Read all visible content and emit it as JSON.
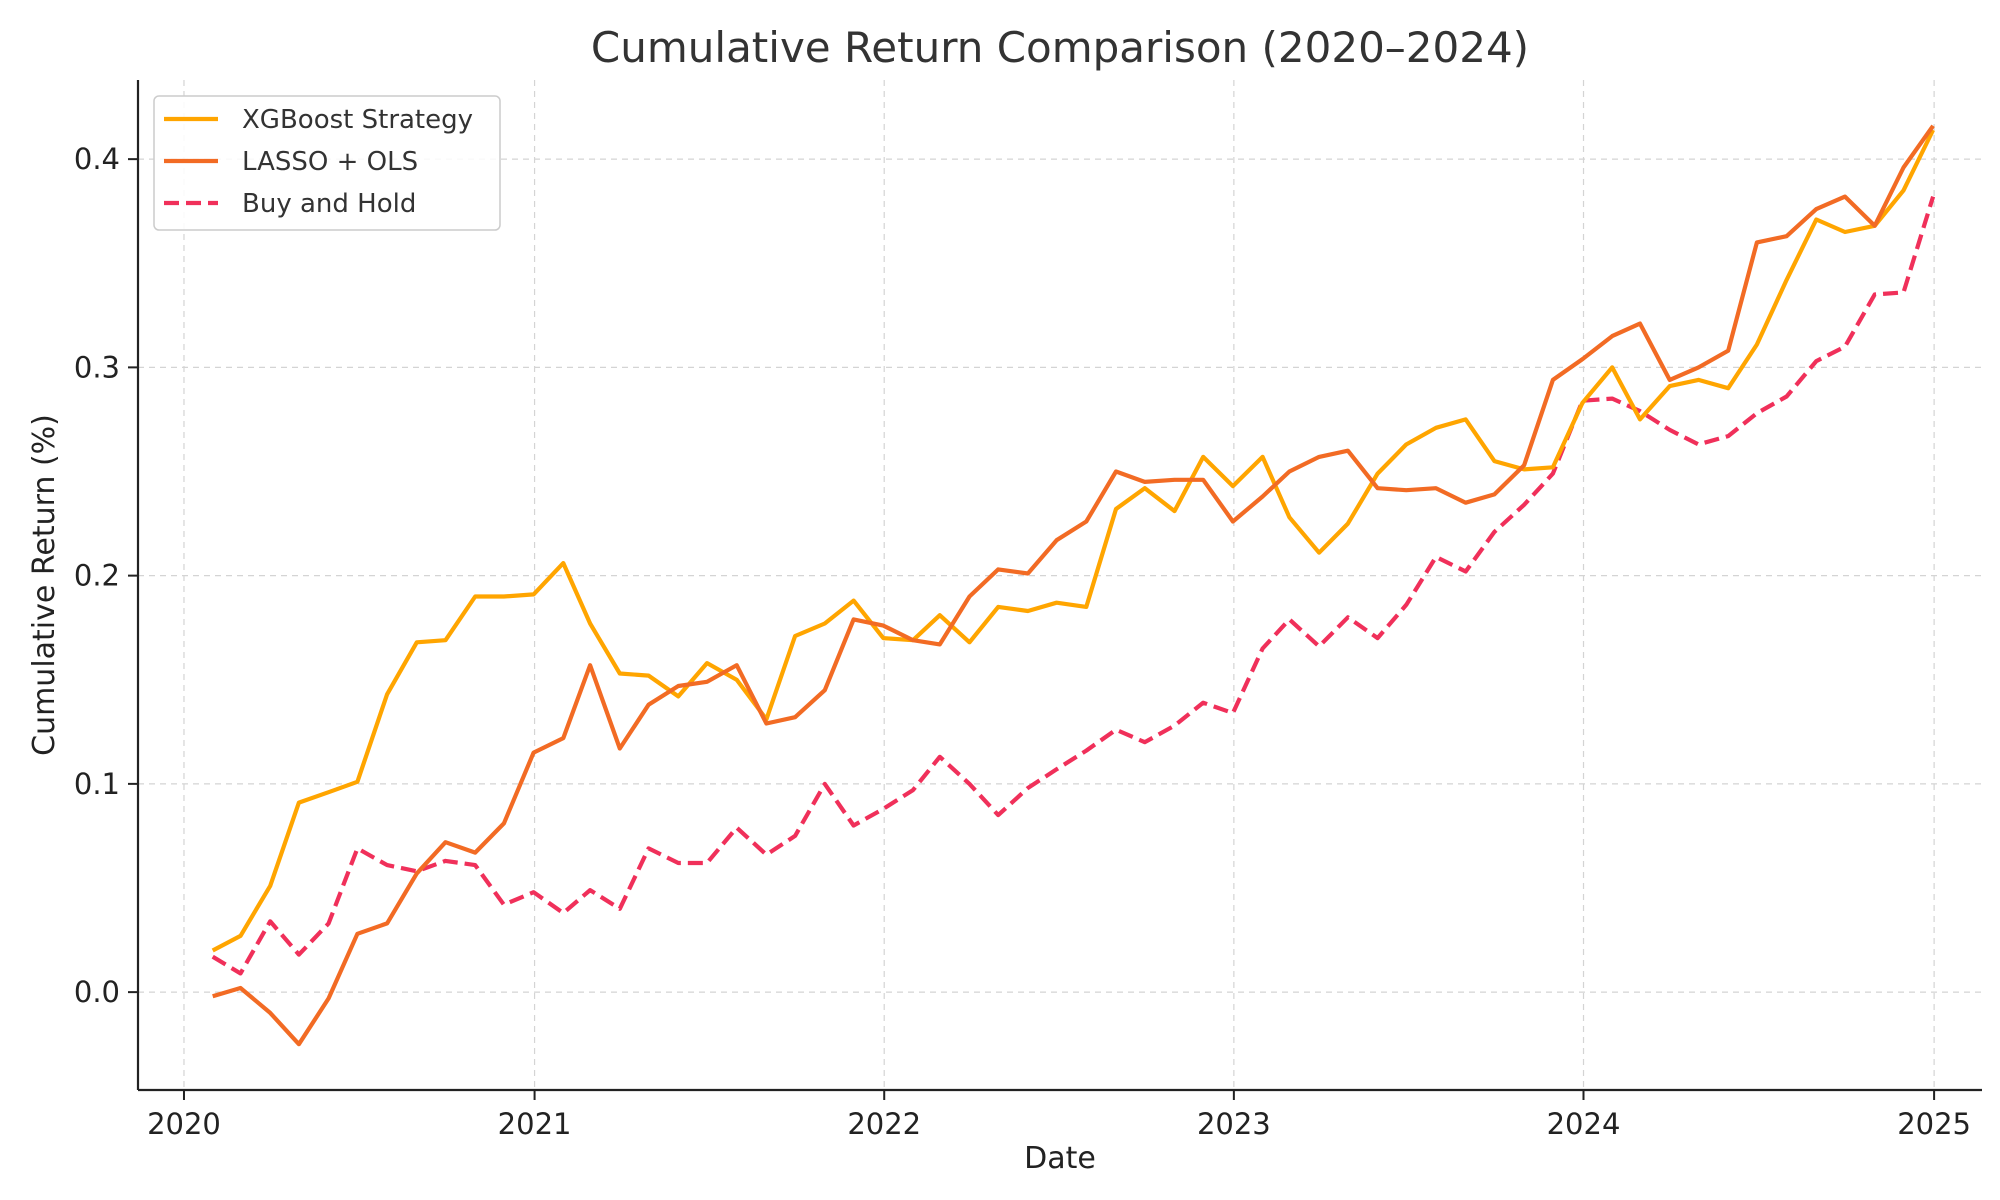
{
  "chart_data": {
    "type": "line",
    "title": "Cumulative Return Comparison (2020–2024)",
    "xlabel": "Date",
    "ylabel": "Cumulative Return (%)",
    "x_ticks": [
      "2020",
      "2021",
      "2022",
      "2023",
      "2024",
      "2025"
    ],
    "y_ticks": [
      "0.0",
      "0.1",
      "0.2",
      "0.3",
      "0.4"
    ],
    "xlim": [
      "2019-11-14",
      "2025-02-20"
    ],
    "ylim": [
      -0.047,
      0.438
    ],
    "grid": true,
    "legend_position": "upper-left",
    "x": [
      "2020-01-31",
      "2020-02-29",
      "2020-03-31",
      "2020-04-30",
      "2020-05-31",
      "2020-06-30",
      "2020-07-31",
      "2020-08-31",
      "2020-09-30",
      "2020-10-31",
      "2020-11-30",
      "2020-12-31",
      "2021-01-31",
      "2021-02-28",
      "2021-03-31",
      "2021-04-30",
      "2021-05-31",
      "2021-06-30",
      "2021-07-31",
      "2021-08-31",
      "2021-09-30",
      "2021-10-31",
      "2021-11-30",
      "2021-12-31",
      "2022-01-31",
      "2022-02-28",
      "2022-03-31",
      "2022-04-30",
      "2022-05-31",
      "2022-06-30",
      "2022-07-31",
      "2022-08-31",
      "2022-09-30",
      "2022-10-31",
      "2022-11-30",
      "2022-12-31",
      "2023-01-31",
      "2023-02-28",
      "2023-03-31",
      "2023-04-30",
      "2023-05-31",
      "2023-06-30",
      "2023-07-31",
      "2023-08-31",
      "2023-09-30",
      "2023-10-31",
      "2023-11-30",
      "2023-12-31",
      "2024-01-31",
      "2024-02-29",
      "2024-03-31",
      "2024-04-30",
      "2024-05-31",
      "2024-06-30",
      "2024-07-31",
      "2024-08-31",
      "2024-09-30",
      "2024-10-31",
      "2024-11-30",
      "2024-12-31"
    ],
    "series": [
      {
        "name": "XGBoost Strategy",
        "color": "#FFA500",
        "style": "solid",
        "values": [
          0.02,
          0.027,
          0.051,
          0.091,
          0.096,
          0.101,
          0.143,
          0.168,
          0.169,
          0.19,
          0.19,
          0.191,
          0.206,
          0.177,
          0.153,
          0.152,
          0.142,
          0.158,
          0.15,
          0.131,
          0.171,
          0.177,
          0.188,
          0.17,
          0.169,
          0.181,
          0.168,
          0.185,
          0.183,
          0.187,
          0.185,
          0.232,
          0.242,
          0.231,
          0.257,
          0.243,
          0.257,
          0.228,
          0.211,
          0.225,
          0.249,
          0.263,
          0.271,
          0.275,
          0.255,
          0.251,
          0.252,
          0.283,
          0.3,
          0.275,
          0.291,
          0.294,
          0.29,
          0.311,
          0.342,
          0.371,
          0.365,
          0.368,
          0.385,
          0.414
        ]
      },
      {
        "name": "LASSO + OLS",
        "color": "#F26B24",
        "style": "solid",
        "values": [
          -0.002,
          0.002,
          -0.01,
          -0.025,
          -0.003,
          0.028,
          0.033,
          0.057,
          0.072,
          0.067,
          0.081,
          0.115,
          0.122,
          0.157,
          0.117,
          0.138,
          0.147,
          0.149,
          0.157,
          0.129,
          0.132,
          0.145,
          0.179,
          0.176,
          0.169,
          0.167,
          0.19,
          0.203,
          0.201,
          0.217,
          0.226,
          0.25,
          0.245,
          0.246,
          0.246,
          0.226,
          0.238,
          0.25,
          0.257,
          0.26,
          0.242,
          0.241,
          0.242,
          0.235,
          0.239,
          0.253,
          0.294,
          0.304,
          0.315,
          0.321,
          0.294,
          0.3,
          0.308,
          0.36,
          0.363,
          0.376,
          0.382,
          0.368,
          0.396,
          0.416
        ]
      },
      {
        "name": "Buy and Hold",
        "color": "#F0305A",
        "style": "dashed",
        "values": [
          0.017,
          0.009,
          0.034,
          0.018,
          0.033,
          0.069,
          0.061,
          0.058,
          0.063,
          0.061,
          0.042,
          0.048,
          0.038,
          0.049,
          0.04,
          0.069,
          0.062,
          0.062,
          0.079,
          0.066,
          0.075,
          0.1,
          0.08,
          0.088,
          0.097,
          0.113,
          0.1,
          0.085,
          0.098,
          0.107,
          0.116,
          0.126,
          0.12,
          0.128,
          0.139,
          0.134,
          0.165,
          0.179,
          0.166,
          0.18,
          0.17,
          0.186,
          0.209,
          0.202,
          0.221,
          0.234,
          0.249,
          0.284,
          0.285,
          0.279,
          0.27,
          0.263,
          0.267,
          0.278,
          0.286,
          0.303,
          0.31,
          0.335,
          0.336,
          0.382
        ]
      }
    ]
  }
}
